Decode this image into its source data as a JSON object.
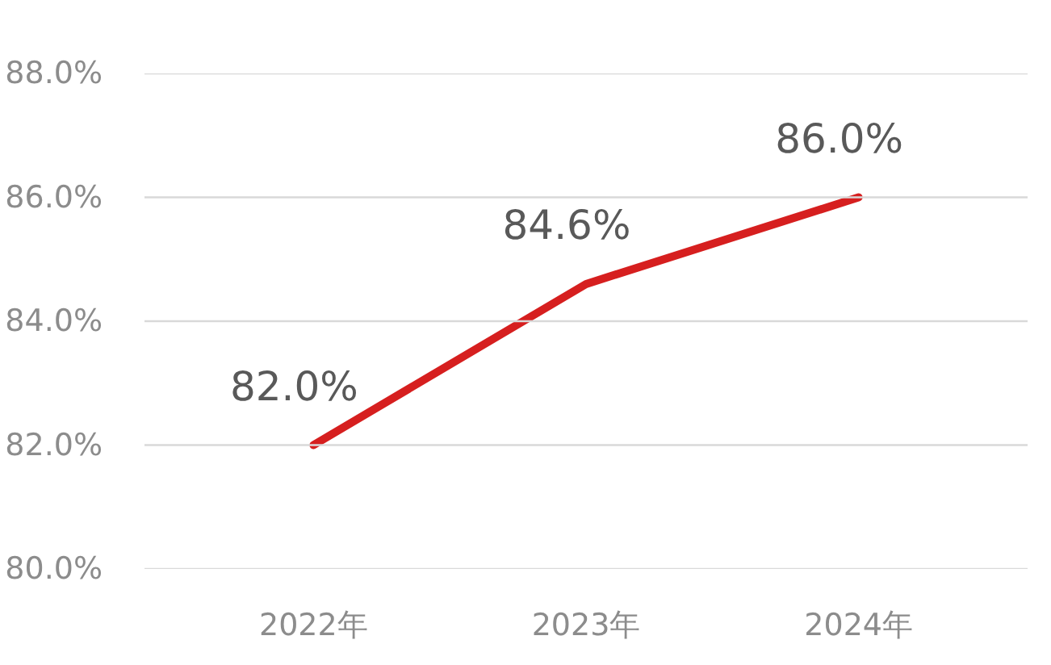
{
  "chart_data": {
    "type": "line",
    "categories": [
      "2022年",
      "2023年",
      "2024年"
    ],
    "series": [
      {
        "color": "#d61f1f",
        "values": [
          82.0,
          84.6,
          86.0
        ],
        "value_labels": [
          "82.0%",
          "84.6%",
          "86.0%"
        ]
      }
    ],
    "ylim": [
      80,
      88
    ],
    "yticks": [
      {
        "value": 80,
        "label": "80.0%"
      },
      {
        "value": 82,
        "label": "82.0%"
      },
      {
        "value": 84,
        "label": "84.0%"
      },
      {
        "value": 86,
        "label": "86.0%"
      },
      {
        "value": 88,
        "label": "88.0%"
      }
    ],
    "grid": "y",
    "marker": "none",
    "line_style": "solid"
  }
}
